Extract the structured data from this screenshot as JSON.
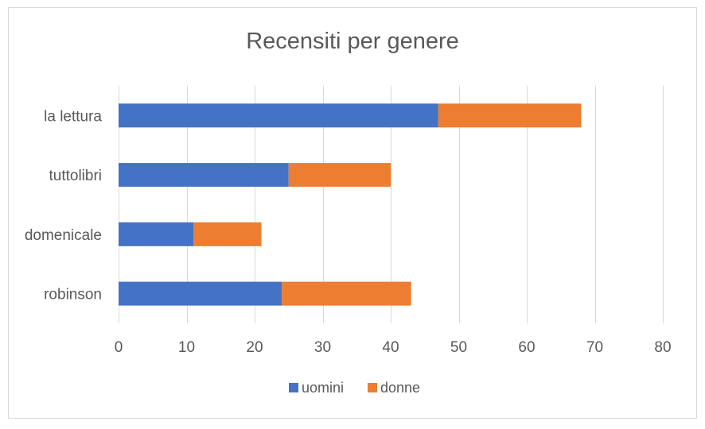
{
  "chart_data": {
    "type": "bar",
    "orientation": "horizontal",
    "stacked": true,
    "title": "Recensiti per genere",
    "categories": [
      "la lettura",
      "tuttolibri",
      "domenicale",
      "robinson"
    ],
    "series": [
      {
        "name": "uomini",
        "color": "#4472c4",
        "values": [
          47,
          25,
          11,
          24
        ]
      },
      {
        "name": "donne",
        "color": "#ed7d31",
        "values": [
          21,
          15,
          10,
          19
        ]
      }
    ],
    "xlim": [
      0,
      80
    ],
    "xticks": [
      "0",
      "10",
      "20",
      "30",
      "40",
      "50",
      "60",
      "70",
      "80"
    ],
    "grid": true,
    "legend_position": "bottom"
  }
}
